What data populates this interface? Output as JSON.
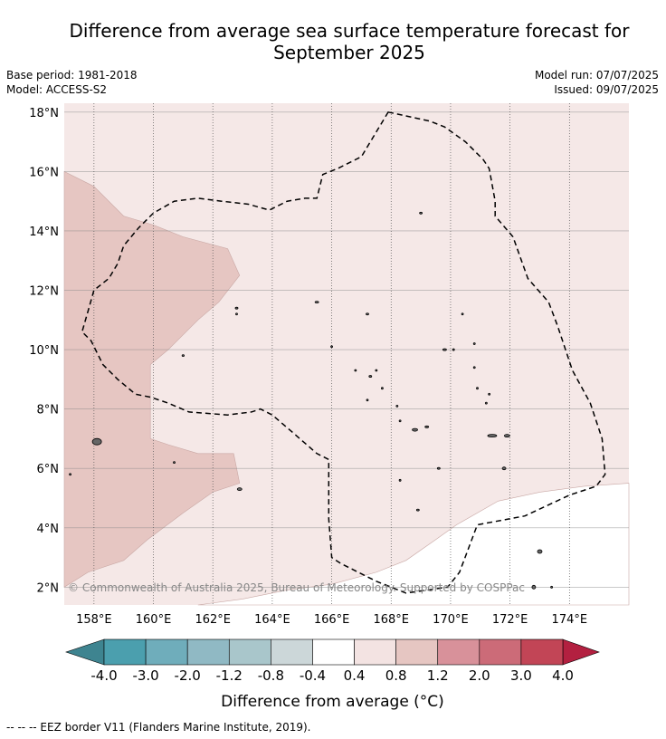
{
  "header": {
    "title_line1": "Difference from average sea surface temperature forecast for",
    "title_line2": "September 2025",
    "base_period": "Base period: 1981-2018",
    "model": "Model: ACCESS-S2",
    "model_run": "Model run: 07/07/2025",
    "issued": "Issued: 09/07/2025"
  },
  "map": {
    "copyright": "© Commonwealth of Australia 2025, Bureau of Meteorology. Supported by COSPPac"
  },
  "chart_data": {
    "type": "heatmap",
    "lon_range": [
      157.0,
      176.0
    ],
    "lat_range": [
      1.4,
      18.3
    ],
    "lon_ticks": [
      {
        "value": 158,
        "label": "158°E"
      },
      {
        "value": 160,
        "label": "160°E"
      },
      {
        "value": 162,
        "label": "162°E"
      },
      {
        "value": 164,
        "label": "164°E"
      },
      {
        "value": 166,
        "label": "166°E"
      },
      {
        "value": 168,
        "label": "168°E"
      },
      {
        "value": 170,
        "label": "170°E"
      },
      {
        "value": 172,
        "label": "172°E"
      },
      {
        "value": 174,
        "label": "174°E"
      }
    ],
    "lat_ticks": [
      {
        "value": 2,
        "label": "2°N"
      },
      {
        "value": 4,
        "label": "4°N"
      },
      {
        "value": 6,
        "label": "6°N"
      },
      {
        "value": 8,
        "label": "8°N"
      },
      {
        "value": 10,
        "label": "10°N"
      },
      {
        "value": 12,
        "label": "12°N"
      },
      {
        "value": 14,
        "label": "14°N"
      },
      {
        "value": 16,
        "label": "16°N"
      },
      {
        "value": 18,
        "label": "18°N"
      }
    ],
    "grid": true,
    "background_band": "0.4 to 0.8",
    "regions": [
      {
        "band": "0.8 to 1.2",
        "color": "#e6c6c2",
        "polygon": [
          [
            157,
            16
          ],
          [
            158,
            15.5
          ],
          [
            159,
            14.5
          ],
          [
            160,
            14.2
          ],
          [
            161,
            13.8
          ],
          [
            162.5,
            13.4
          ],
          [
            162.9,
            12.5
          ],
          [
            162.2,
            11.6
          ],
          [
            161.5,
            11
          ],
          [
            160.5,
            10
          ],
          [
            159.9,
            9.5
          ],
          [
            159.9,
            7
          ],
          [
            160.5,
            6.8
          ],
          [
            161.5,
            6.5
          ],
          [
            162.7,
            6.5
          ],
          [
            162.9,
            5.5
          ],
          [
            162,
            5.2
          ],
          [
            161,
            4.5
          ],
          [
            159.8,
            3.6
          ],
          [
            159,
            2.9
          ],
          [
            157.8,
            2.5
          ],
          [
            157,
            2
          ]
        ]
      },
      {
        "band": "-0.4 to 0.4",
        "color": "#ffffff",
        "polygon": [
          [
            176,
            5.5
          ],
          [
            174.5,
            5.4
          ],
          [
            173,
            5.2
          ],
          [
            171.6,
            4.9
          ],
          [
            170.2,
            4.1
          ],
          [
            169.5,
            3.6
          ],
          [
            168.5,
            2.9
          ],
          [
            167.5,
            2.5
          ],
          [
            166,
            2.1
          ],
          [
            164.5,
            1.9
          ],
          [
            163,
            1.6
          ],
          [
            161.5,
            1.4
          ],
          [
            176,
            1.4
          ]
        ]
      }
    ],
    "eez_border": [
      [
        167.9,
        18
      ],
      [
        169.3,
        17.7
      ],
      [
        169.8,
        17.5
      ],
      [
        170.5,
        17
      ],
      [
        171.1,
        16.4
      ],
      [
        171.3,
        16.1
      ],
      [
        171.5,
        15
      ],
      [
        171.5,
        14.5
      ],
      [
        172.1,
        13.8
      ],
      [
        172.6,
        12.4
      ],
      [
        173.3,
        11.6
      ],
      [
        173.6,
        10.8
      ],
      [
        174.1,
        9.3
      ],
      [
        174.7,
        8.2
      ],
      [
        175.1,
        7
      ],
      [
        175.2,
        5.8
      ],
      [
        174.9,
        5.4
      ],
      [
        174,
        5.1
      ],
      [
        172.5,
        4.4
      ],
      [
        170.9,
        4.1
      ],
      [
        170.3,
        2.5
      ],
      [
        169.9,
        2
      ],
      [
        168.5,
        1.8
      ],
      [
        167.5,
        2.2
      ],
      [
        166.3,
        2.8
      ],
      [
        166,
        3
      ],
      [
        165.9,
        4.3
      ],
      [
        165.9,
        6.3
      ],
      [
        165.5,
        6.5
      ],
      [
        164.7,
        7.2
      ],
      [
        164,
        7.8
      ],
      [
        163.6,
        8
      ],
      [
        163.3,
        7.9
      ],
      [
        162.5,
        7.8
      ],
      [
        161.2,
        7.9
      ],
      [
        160.5,
        8.2
      ],
      [
        159.9,
        8.4
      ],
      [
        159.4,
        8.5
      ],
      [
        158.8,
        9
      ],
      [
        158.3,
        9.5
      ],
      [
        157.9,
        10.3
      ],
      [
        157.6,
        10.6
      ],
      [
        157.8,
        11.3
      ],
      [
        158,
        12
      ],
      [
        158.5,
        12.4
      ],
      [
        158.8,
        12.9
      ],
      [
        159,
        13.5
      ],
      [
        159.5,
        14.1
      ],
      [
        160,
        14.6
      ],
      [
        160.7,
        15
      ],
      [
        161.5,
        15.1
      ],
      [
        162.3,
        15
      ],
      [
        163.2,
        14.9
      ],
      [
        163.9,
        14.7
      ],
      [
        164.5,
        15
      ],
      [
        165.1,
        15.1
      ],
      [
        165.5,
        15.1
      ],
      [
        165.7,
        15.9
      ],
      [
        166.2,
        16.1
      ],
      [
        167,
        16.5
      ]
    ],
    "islands": [
      [
        158.1,
        6.9,
        5,
        3.5
      ],
      [
        157.2,
        5.8,
        1,
        1
      ],
      [
        162.8,
        11.4,
        1.5,
        1
      ],
      [
        162.8,
        11.2,
        1,
        1
      ],
      [
        161.0,
        9.8,
        1.2,
        1
      ],
      [
        160.7,
        6.2,
        1,
        1
      ],
      [
        162.9,
        5.3,
        2.5,
        1.5
      ],
      [
        165.5,
        11.6,
        2,
        1
      ],
      [
        167.2,
        11.2,
        1.5,
        1
      ],
      [
        166.0,
        10.1,
        1,
        1
      ],
      [
        166.8,
        9.3,
        1,
        1
      ],
      [
        167.3,
        9.1,
        1.5,
        1
      ],
      [
        167.5,
        9.3,
        1,
        1
      ],
      [
        167.7,
        8.7,
        1,
        1
      ],
      [
        167.2,
        8.3,
        1,
        1
      ],
      [
        168.2,
        8.1,
        1,
        1
      ],
      [
        168.3,
        7.6,
        1,
        1
      ],
      [
        168.8,
        7.3,
        3,
        1.5
      ],
      [
        169.2,
        7.4,
        2,
        1
      ],
      [
        169.8,
        10.0,
        2,
        1
      ],
      [
        170.1,
        10.0,
        1,
        1
      ],
      [
        170.4,
        11.2,
        1,
        1
      ],
      [
        169.0,
        14.6,
        1.5,
        1
      ],
      [
        170.8,
        9.4,
        1,
        1
      ],
      [
        170.9,
        8.7,
        1,
        1
      ],
      [
        171.3,
        8.5,
        1,
        1
      ],
      [
        171.2,
        8.2,
        1,
        1
      ],
      [
        171.4,
        7.1,
        5,
        1.5
      ],
      [
        171.9,
        7.1,
        3,
        1.5
      ],
      [
        171.8,
        6.0,
        2,
        1.5
      ],
      [
        168.3,
        5.6,
        1,
        1
      ],
      [
        168.9,
        4.6,
        1.5,
        1
      ],
      [
        169.6,
        6.0,
        1.5,
        1
      ],
      [
        170.8,
        10.2,
        1,
        1
      ],
      [
        173.0,
        3.2,
        2.5,
        2
      ],
      [
        172.8,
        2.0,
        2,
        2
      ],
      [
        173.4,
        2.0,
        1,
        1
      ]
    ],
    "colorbar": {
      "segments": [
        {
          "color": "#4b9fae"
        },
        {
          "color": "#6fadbb"
        },
        {
          "color": "#90b9c4"
        },
        {
          "color": "#a9c6cb"
        },
        {
          "color": "#ccd7d9"
        },
        {
          "color": "#ffffff"
        },
        {
          "color": "#f3e3e2"
        },
        {
          "color": "#e6c6c2"
        },
        {
          "color": "#d8919a"
        },
        {
          "color": "#cc6b78"
        },
        {
          "color": "#c24556"
        }
      ],
      "under_color": "#3e8490",
      "over_color": "#b32040",
      "tick_labels": [
        "-4.0",
        "-3.0",
        "-2.0",
        "-1.2",
        "-0.8",
        "-0.4",
        "0.4",
        "0.8",
        "1.2",
        "2.0",
        "3.0",
        "4.0"
      ],
      "label": "Difference from average (°C)"
    },
    "legend_note": "-- -- -- EEZ border V11 (Flanders Marine Institute, 2019)."
  },
  "colors": {
    "bg_fill": "#f5e8e7",
    "grid": "#888888",
    "border": "#000000"
  }
}
